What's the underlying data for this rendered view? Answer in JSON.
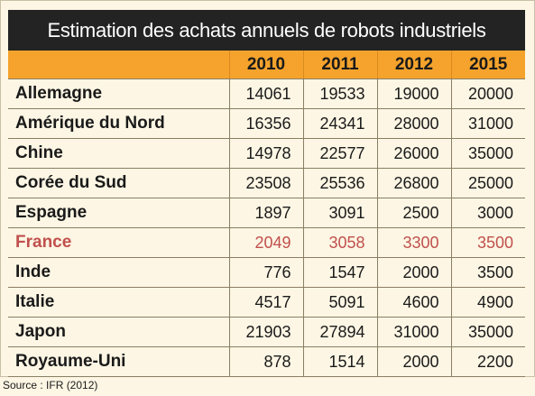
{
  "chart_data": {
    "type": "table",
    "title": "Estimation des achats annuels de robots industriels",
    "columns": [
      "2010",
      "2011",
      "2012",
      "2015"
    ],
    "rows": [
      {
        "label": "Allemagne",
        "values": [
          "14061",
          "19533",
          "19000",
          "20000"
        ],
        "highlight": false
      },
      {
        "label": "Amérique du Nord",
        "values": [
          "16356",
          "24341",
          "28000",
          "31000"
        ],
        "highlight": false
      },
      {
        "label": "Chine",
        "values": [
          "14978",
          "22577",
          "26000",
          "35000"
        ],
        "highlight": false
      },
      {
        "label": "Corée du Sud",
        "values": [
          "23508",
          "25536",
          "26800",
          "25000"
        ],
        "highlight": false
      },
      {
        "label": "Espagne",
        "values": [
          "1897",
          "3091",
          "2500",
          "3000"
        ],
        "highlight": false
      },
      {
        "label": "France",
        "values": [
          "2049",
          "3058",
          "3300",
          "3500"
        ],
        "highlight": true
      },
      {
        "label": "Inde",
        "values": [
          "776",
          "1547",
          "2000",
          "3500"
        ],
        "highlight": false
      },
      {
        "label": "Italie",
        "values": [
          "4517",
          "5091",
          "4600",
          "4900"
        ],
        "highlight": false
      },
      {
        "label": "Japon",
        "values": [
          "21903",
          "27894",
          "31000",
          "35000"
        ],
        "highlight": false
      },
      {
        "label": "Royaume-Uni",
        "values": [
          "878",
          "1514",
          "2000",
          "2200"
        ],
        "highlight": false
      }
    ],
    "source": "Source : IFR (2012)"
  },
  "colors": {
    "title_bg": "#232323",
    "header_bg": "#f5a32c",
    "page_bg": "#fdf6e4",
    "highlight_text": "#c0504d"
  }
}
